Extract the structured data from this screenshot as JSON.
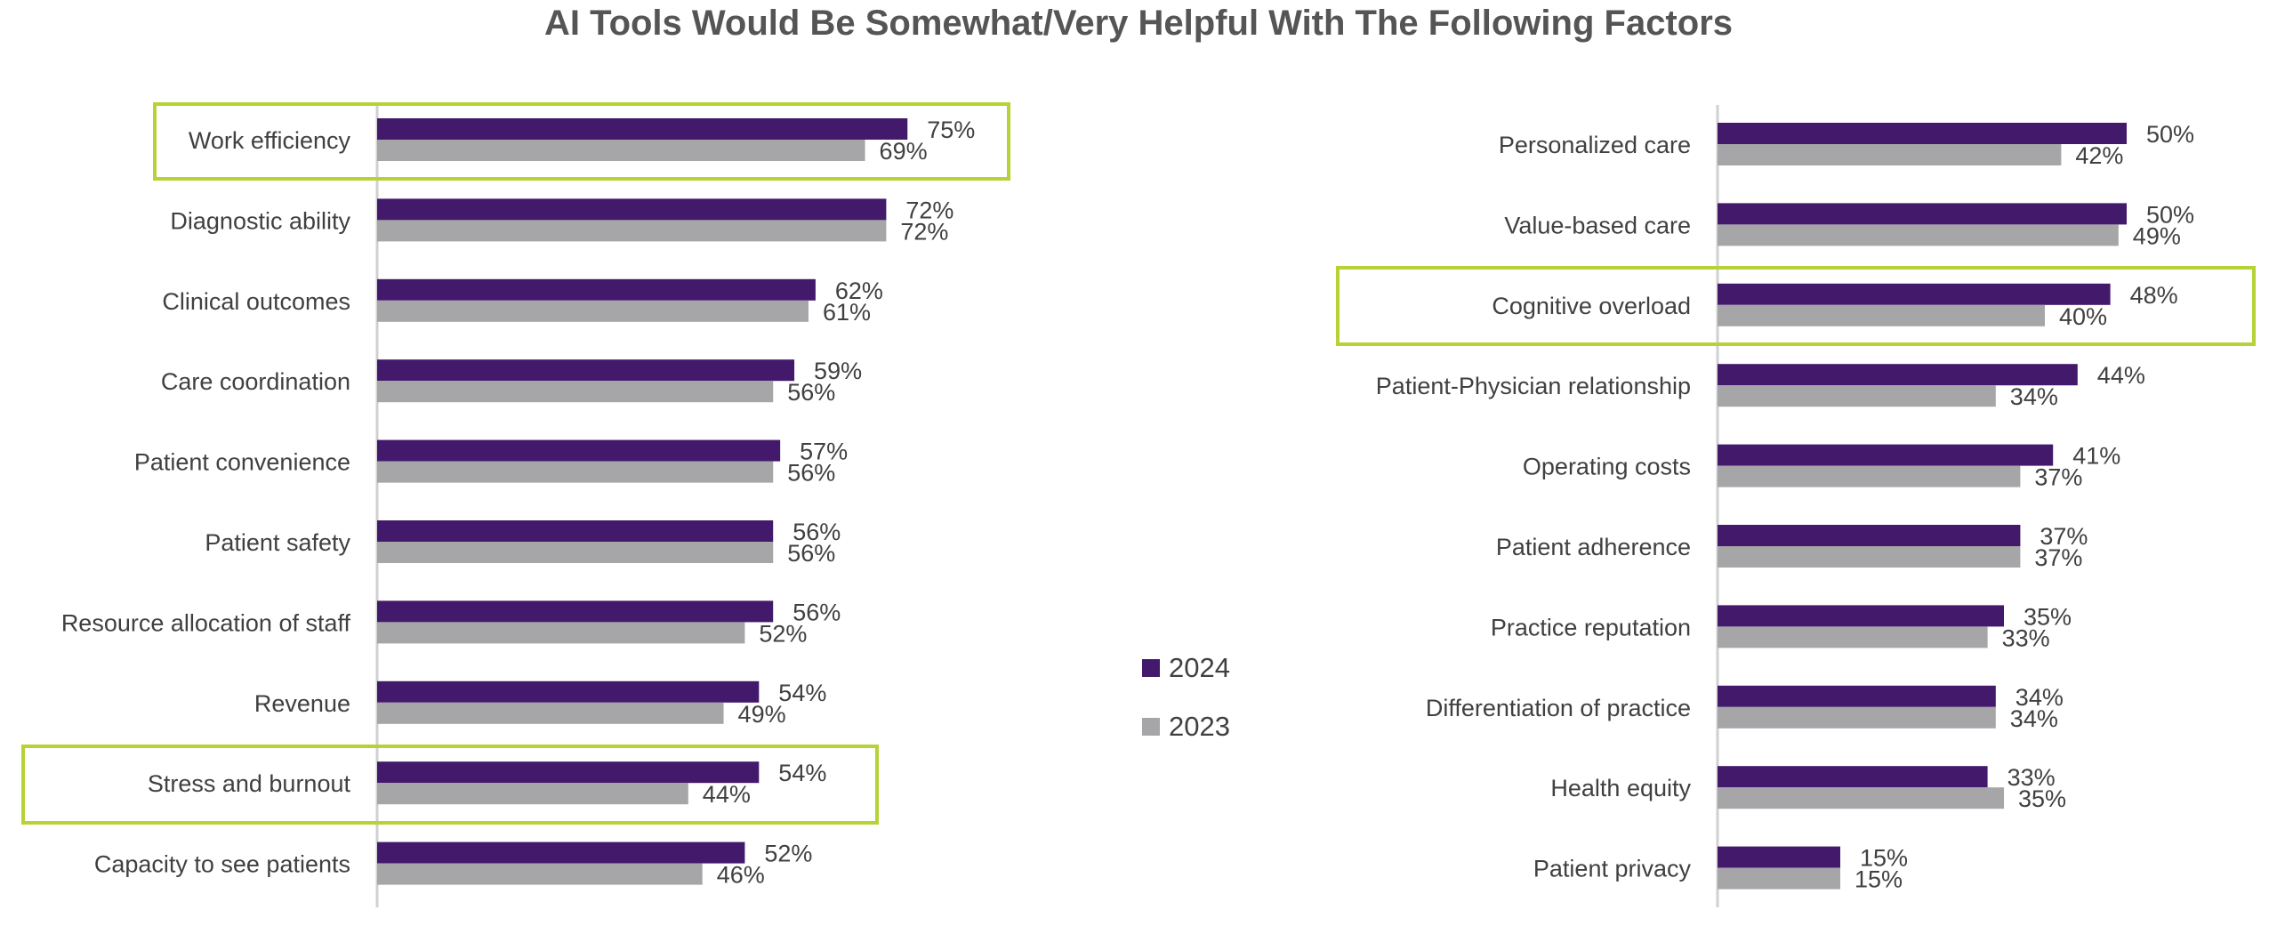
{
  "title": "AI Tools Would Be Somewhat/Very Helpful With The Following Factors",
  "colors": {
    "2024": "#43196b",
    "2023": "#a6a5a7",
    "highlight": "#b5d334",
    "axis": "#d0d0d0"
  },
  "legend": [
    {
      "label": "2024",
      "color": "#43196b"
    },
    {
      "label": "2023",
      "color": "#a6a5a7"
    }
  ],
  "chart_data": [
    {
      "type": "bar",
      "orientation": "horizontal",
      "categories": [
        "Work efficiency",
        "Diagnostic ability",
        "Clinical outcomes",
        "Care coordination",
        "Patient convenience",
        "Patient safety",
        "Resource allocation of staff",
        "Revenue",
        "Stress and burnout",
        "Capacity to see patients"
      ],
      "series": [
        {
          "name": "2024",
          "values": [
            75,
            72,
            62,
            59,
            57,
            56,
            56,
            54,
            54,
            52
          ],
          "labels": [
            "75%",
            "72%",
            "62%",
            "59%",
            "57%",
            "56%",
            "56%",
            "54%",
            "54%",
            "52%"
          ]
        },
        {
          "name": "2023",
          "values": [
            69,
            72,
            61,
            56,
            56,
            56,
            52,
            49,
            44,
            46
          ],
          "labels": [
            "69%",
            "72%",
            "61%",
            "56%",
            "56%",
            "56%",
            "52%",
            "49%",
            "44%",
            "46%"
          ]
        }
      ],
      "highlighted": [
        "Work efficiency",
        "Stress and burnout"
      ]
    },
    {
      "type": "bar",
      "orientation": "horizontal",
      "categories": [
        "Personalized care",
        "Value-based care",
        "Cognitive overload",
        "Patient-Physician relationship",
        "Operating costs",
        "Patient adherence",
        "Practice reputation",
        "Differentiation of practice",
        "Health equity",
        "Patient privacy"
      ],
      "series": [
        {
          "name": "2024",
          "values": [
            50,
            50,
            48,
            44,
            41,
            37,
            35,
            34,
            33,
            15
          ],
          "labels": [
            "50%",
            "50%",
            "48%",
            "44%",
            "41%",
            "37%",
            "35%",
            "34%",
            "33%",
            "15%"
          ]
        },
        {
          "name": "2023",
          "values": [
            42,
            49,
            40,
            34,
            37,
            37,
            33,
            34,
            35,
            15
          ],
          "labels": [
            "42%",
            "49%",
            "40%",
            "34%",
            "37%",
            "37%",
            "33%",
            "34%",
            "35%",
            "15%"
          ]
        }
      ],
      "highlighted": [
        "Cognitive overload"
      ]
    }
  ]
}
